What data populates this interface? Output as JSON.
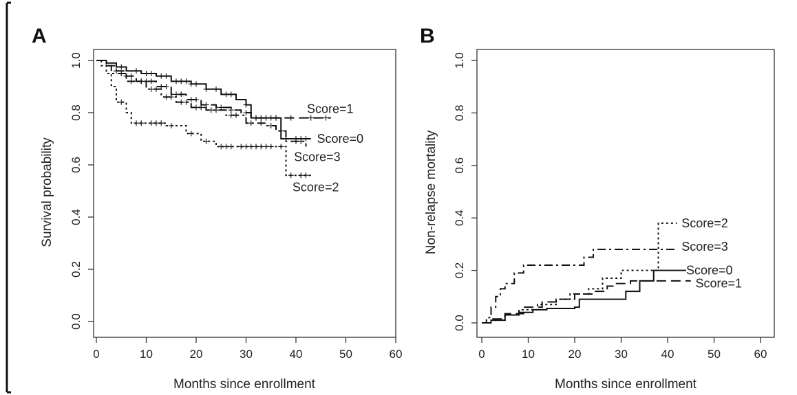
{
  "chart_data": [
    {
      "panel": "A",
      "type": "line",
      "xlabel": "Months since enrollment",
      "ylabel": "Survival probability",
      "xlim": [
        0,
        60
      ],
      "ylim": [
        0,
        1
      ],
      "xticks": [
        0,
        10,
        20,
        30,
        40,
        50,
        60
      ],
      "yticks": [
        "0.0",
        "0.2",
        "0.4",
        "0.6",
        "0.8",
        "1.0"
      ],
      "grid": false,
      "series": [
        {
          "name": "Score=0",
          "style": "solid",
          "points": [
            [
              0,
              1.0
            ],
            [
              2,
              0.99
            ],
            [
              4,
              0.975
            ],
            [
              6,
              0.96
            ],
            [
              9,
              0.95
            ],
            [
              12,
              0.94
            ],
            [
              15,
              0.92
            ],
            [
              19,
              0.91
            ],
            [
              22,
              0.89
            ],
            [
              25,
              0.87
            ],
            [
              28,
              0.85
            ],
            [
              30,
              0.83
            ],
            [
              31,
              0.78
            ],
            [
              35,
              0.78
            ],
            [
              37,
              0.7
            ],
            [
              43,
              0.7
            ]
          ],
          "censor_x": [
            5,
            8,
            10,
            11,
            13,
            14,
            16,
            17,
            18,
            19,
            20,
            22,
            24,
            26,
            27,
            30,
            32,
            34,
            36,
            38,
            40,
            41,
            42
          ]
        },
        {
          "name": "Score=1",
          "style": "dashed",
          "points": [
            [
              0,
              1.0
            ],
            [
              2,
              0.98
            ],
            [
              4,
              0.96
            ],
            [
              6,
              0.94
            ],
            [
              8,
              0.92
            ],
            [
              12,
              0.9
            ],
            [
              15,
              0.87
            ],
            [
              18,
              0.85
            ],
            [
              21,
              0.83
            ],
            [
              24,
              0.82
            ],
            [
              27,
              0.81
            ],
            [
              29,
              0.8
            ],
            [
              31,
              0.78
            ],
            [
              47,
              0.78
            ]
          ],
          "censor_x": [
            4,
            6,
            7,
            9,
            10,
            11,
            13,
            14,
            16,
            17,
            19,
            20,
            22,
            25,
            27,
            30,
            32,
            33,
            34,
            35,
            36,
            39,
            43,
            46
          ]
        },
        {
          "name": "Score=2",
          "style": "dotted",
          "points": [
            [
              0,
              1.0
            ],
            [
              1,
              0.98
            ],
            [
              2,
              0.95
            ],
            [
              3,
              0.9
            ],
            [
              4,
              0.84
            ],
            [
              6,
              0.8
            ],
            [
              7,
              0.76
            ],
            [
              14,
              0.75
            ],
            [
              18,
              0.72
            ],
            [
              21,
              0.69
            ],
            [
              24,
              0.67
            ],
            [
              38,
              0.67
            ],
            [
              38,
              0.56
            ],
            [
              43,
              0.56
            ]
          ],
          "censor_x": [
            5,
            8,
            9,
            11,
            12,
            13,
            15,
            19,
            22,
            25,
            26,
            27,
            29,
            30,
            31,
            32,
            33,
            34,
            35,
            37,
            39,
            41,
            42
          ]
        },
        {
          "name": "Score=3",
          "style": "dashdot",
          "points": [
            [
              0,
              1.0
            ],
            [
              2,
              0.98
            ],
            [
              3,
              0.95
            ],
            [
              6,
              0.92
            ],
            [
              10,
              0.89
            ],
            [
              13,
              0.86
            ],
            [
              16,
              0.84
            ],
            [
              19,
              0.82
            ],
            [
              22,
              0.81
            ],
            [
              26,
              0.79
            ],
            [
              30,
              0.76
            ],
            [
              34,
              0.75
            ],
            [
              36,
              0.73
            ],
            [
              38,
              0.69
            ],
            [
              42,
              0.67
            ]
          ],
          "censor_x": [
            5,
            7,
            9,
            11,
            12,
            14,
            15,
            17,
            18,
            20,
            21,
            23,
            24,
            27,
            28,
            31,
            33,
            35,
            37,
            40,
            41
          ]
        }
      ]
    },
    {
      "panel": "B",
      "type": "line",
      "xlabel": "Months since enrollment",
      "ylabel": "Non-relapse mortality",
      "xlim": [
        0,
        60
      ],
      "ylim": [
        0,
        1
      ],
      "xticks": [
        0,
        10,
        20,
        30,
        40,
        50,
        60
      ],
      "yticks": [
        "0.0",
        "0.2",
        "0.4",
        "0.6",
        "0.8",
        "1.0"
      ],
      "grid": false,
      "series": [
        {
          "name": "Score=2",
          "style": "dotted",
          "points": [
            [
              0,
              0.0
            ],
            [
              2,
              0.01
            ],
            [
              5,
              0.03
            ],
            [
              8,
              0.05
            ],
            [
              12,
              0.07
            ],
            [
              16,
              0.09
            ],
            [
              19,
              0.11
            ],
            [
              23,
              0.13
            ],
            [
              26,
              0.17
            ],
            [
              30,
              0.2
            ],
            [
              38,
              0.2
            ],
            [
              38,
              0.38
            ],
            [
              42,
              0.38
            ]
          ]
        },
        {
          "name": "Score=3",
          "style": "dashdot",
          "points": [
            [
              0,
              0.0
            ],
            [
              1,
              0.02
            ],
            [
              2,
              0.06
            ],
            [
              3,
              0.1
            ],
            [
              4,
              0.13
            ],
            [
              5,
              0.15
            ],
            [
              7,
              0.19
            ],
            [
              9,
              0.22
            ],
            [
              20,
              0.22
            ],
            [
              22,
              0.25
            ],
            [
              24,
              0.28
            ],
            [
              42,
              0.28
            ]
          ]
        },
        {
          "name": "Score=0",
          "style": "solid",
          "points": [
            [
              0,
              0.0
            ],
            [
              2,
              0.01
            ],
            [
              5,
              0.03
            ],
            [
              8,
              0.04
            ],
            [
              11,
              0.05
            ],
            [
              14,
              0.055
            ],
            [
              20,
              0.06
            ],
            [
              21,
              0.09
            ],
            [
              30,
              0.09
            ],
            [
              31,
              0.12
            ],
            [
              34,
              0.12
            ],
            [
              34,
              0.16
            ],
            [
              36,
              0.16
            ],
            [
              37,
              0.2
            ],
            [
              44,
              0.2
            ]
          ]
        },
        {
          "name": "Score=1",
          "style": "dashed",
          "points": [
            [
              0,
              0.0
            ],
            [
              2,
              0.015
            ],
            [
              5,
              0.035
            ],
            [
              9,
              0.06
            ],
            [
              13,
              0.08
            ],
            [
              16,
              0.09
            ],
            [
              20,
              0.11
            ],
            [
              24,
              0.12
            ],
            [
              27,
              0.14
            ],
            [
              29,
              0.15
            ],
            [
              32,
              0.16
            ],
            [
              45,
              0.16
            ]
          ]
        }
      ]
    }
  ],
  "annotations": {
    "A": [
      {
        "text": "Score=1",
        "x": 42.2,
        "y": 0.815
      },
      {
        "text": "Score=0",
        "x": 44.2,
        "y": 0.7
      },
      {
        "text": "Score=3",
        "x": 39.6,
        "y": 0.63
      },
      {
        "text": "Score=2",
        "x": 39.3,
        "y": 0.515
      }
    ],
    "B": [
      {
        "text": "Score=2",
        "x": 43.0,
        "y": 0.38
      },
      {
        "text": "Score=3",
        "x": 43.0,
        "y": 0.29
      },
      {
        "text": "Score=0",
        "x": 44.0,
        "y": 0.2
      },
      {
        "text": "Score=1",
        "x": 46.0,
        "y": 0.15
      }
    ]
  }
}
